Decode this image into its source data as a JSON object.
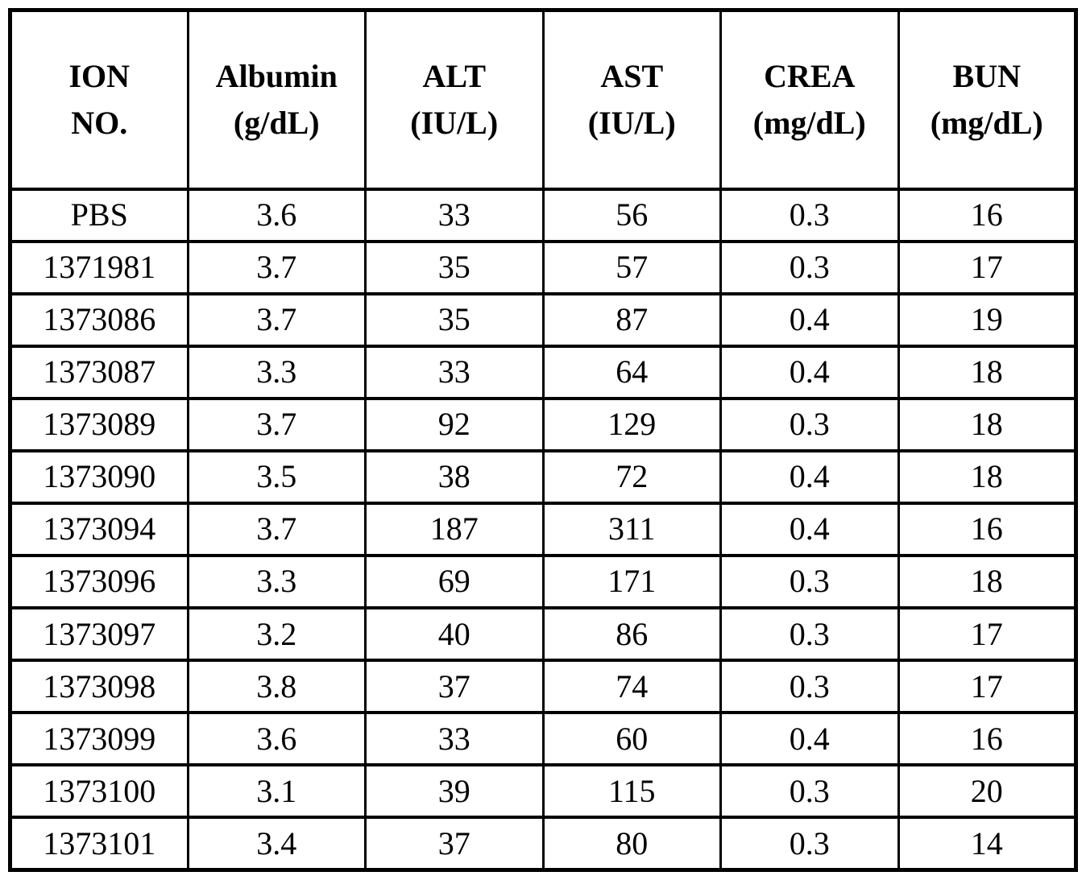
{
  "chart_data": {
    "type": "table",
    "columns": [
      {
        "key": "ion_no",
        "line1": "ION",
        "line2": "NO."
      },
      {
        "key": "albumin",
        "line1": "Albumin",
        "line2": "(g/dL)"
      },
      {
        "key": "alt",
        "line1": "ALT",
        "line2": "(IU/L)"
      },
      {
        "key": "ast",
        "line1": "AST",
        "line2": "(IU/L)"
      },
      {
        "key": "crea",
        "line1": "CREA",
        "line2": "(mg/dL)"
      },
      {
        "key": "bun",
        "line1": "BUN",
        "line2": "(mg/dL)"
      }
    ],
    "rows": [
      {
        "ion_no": "PBS",
        "albumin": "3.6",
        "alt": "33",
        "ast": "56",
        "crea": "0.3",
        "bun": "16"
      },
      {
        "ion_no": "1371981",
        "albumin": "3.7",
        "alt": "35",
        "ast": "57",
        "crea": "0.3",
        "bun": "17"
      },
      {
        "ion_no": "1373086",
        "albumin": "3.7",
        "alt": "35",
        "ast": "87",
        "crea": "0.4",
        "bun": "19"
      },
      {
        "ion_no": "1373087",
        "albumin": "3.3",
        "alt": "33",
        "ast": "64",
        "crea": "0.4",
        "bun": "18"
      },
      {
        "ion_no": "1373089",
        "albumin": "3.7",
        "alt": "92",
        "ast": "129",
        "crea": "0.3",
        "bun": "18"
      },
      {
        "ion_no": "1373090",
        "albumin": "3.5",
        "alt": "38",
        "ast": "72",
        "crea": "0.4",
        "bun": "18"
      },
      {
        "ion_no": "1373094",
        "albumin": "3.7",
        "alt": "187",
        "ast": "311",
        "crea": "0.4",
        "bun": "16"
      },
      {
        "ion_no": "1373096",
        "albumin": "3.3",
        "alt": "69",
        "ast": "171",
        "crea": "0.3",
        "bun": "18"
      },
      {
        "ion_no": "1373097",
        "albumin": "3.2",
        "alt": "40",
        "ast": "86",
        "crea": "0.3",
        "bun": "17"
      },
      {
        "ion_no": "1373098",
        "albumin": "3.8",
        "alt": "37",
        "ast": "74",
        "crea": "0.3",
        "bun": "17"
      },
      {
        "ion_no": "1373099",
        "albumin": "3.6",
        "alt": "33",
        "ast": "60",
        "crea": "0.4",
        "bun": "16"
      },
      {
        "ion_no": "1373100",
        "albumin": "3.1",
        "alt": "39",
        "ast": "115",
        "crea": "0.3",
        "bun": "20"
      },
      {
        "ion_no": "1373101",
        "albumin": "3.4",
        "alt": "37",
        "ast": "80",
        "crea": "0.3",
        "bun": "14"
      }
    ]
  },
  "colors": {
    "border": "#000000",
    "background": "#ffffff",
    "text": "#000000"
  }
}
